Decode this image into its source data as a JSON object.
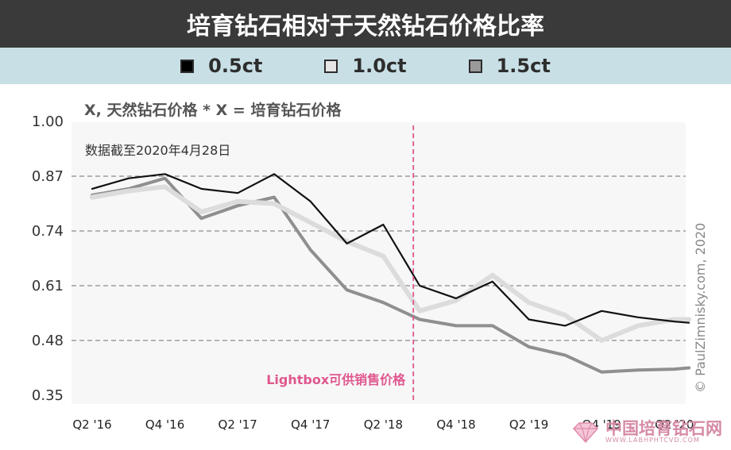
{
  "title": "培育钻石相对于天然钻石价格比率",
  "legend": [
    {
      "label": "0.5ct",
      "color": "#000000"
    },
    {
      "label": "1.0ct",
      "color": "#e6e6e6"
    },
    {
      "label": "1.5ct",
      "color": "#9a9a9a"
    }
  ],
  "subtitle": "X, 天然钻石价格  * X = 培育钻石价格",
  "note": "数据截至2020年4月28日",
  "credit": "© PaulZimnisky.com, 2020",
  "watermark": {
    "text": "中国培育钻石网",
    "sub": "WWW.LABHPHTCVD.COM"
  },
  "chart_data": {
    "type": "line",
    "title": "培育钻石相对于天然钻石价格比率",
    "x_tick_labels": [
      "Q2 '16",
      "Q4 '16",
      "Q2 '17",
      "Q4 '17",
      "Q2 '18",
      "Q4 '18",
      "Q2 '19",
      "Q4 '19",
      "Q2 '20"
    ],
    "y_ticks": [
      1.0,
      0.87,
      0.74,
      0.61,
      0.48,
      0.35
    ],
    "ylim": [
      0.35,
      1.0
    ],
    "x": [
      0,
      0.5,
      1,
      1.5,
      2,
      2.5,
      3,
      3.5,
      4,
      4.5,
      5,
      5.5,
      6,
      6.5,
      7,
      7.5,
      8,
      8.2
    ],
    "series": [
      {
        "name": "0.5ct",
        "color": "#111111",
        "width": 2.2,
        "values": [
          0.84,
          0.865,
          0.875,
          0.84,
          0.83,
          0.875,
          0.81,
          0.71,
          0.755,
          0.61,
          0.58,
          0.62,
          0.53,
          0.515,
          0.55,
          0.535,
          0.525,
          0.522
        ]
      },
      {
        "name": "1.0ct",
        "color": "#dcdcdc",
        "width": 6,
        "values": [
          0.82,
          0.835,
          0.845,
          0.785,
          0.81,
          0.805,
          0.76,
          0.715,
          0.68,
          0.55,
          0.575,
          0.635,
          0.57,
          0.54,
          0.48,
          0.515,
          0.53,
          0.53
        ]
      },
      {
        "name": "1.5ct",
        "color": "#8f8f8f",
        "width": 4,
        "values": [
          0.825,
          0.84,
          0.865,
          0.77,
          0.8,
          0.82,
          0.695,
          0.6,
          0.57,
          0.53,
          0.515,
          0.515,
          0.465,
          0.445,
          0.405,
          0.41,
          0.412,
          0.415
        ]
      }
    ],
    "annotation": {
      "text": "Lightbox可供销售价格",
      "x": 4.5,
      "color": "#e0578f"
    },
    "grid": "horizontal dashed"
  }
}
